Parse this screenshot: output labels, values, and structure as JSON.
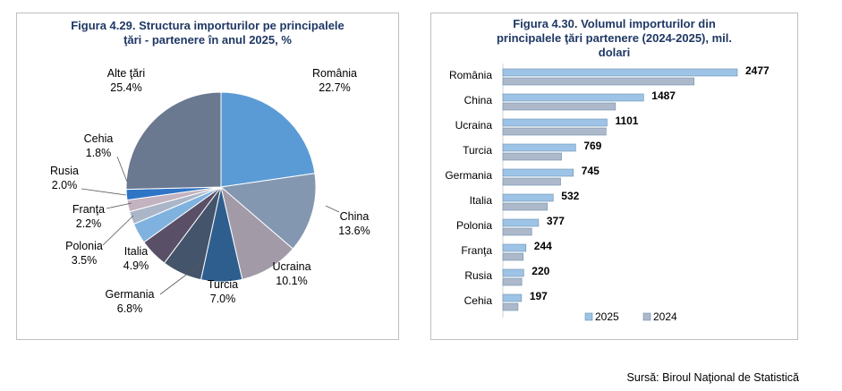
{
  "chart_data": [
    {
      "type": "pie",
      "title_line1": "Figura 4.29. Structura importurilor pe principalele",
      "title_line2": "ţări - partenere în anul 2025, %",
      "slices": [
        {
          "name": "România",
          "value": 22.7,
          "label": "22.7%",
          "color": "#5b9bd5"
        },
        {
          "name": "China",
          "value": 13.6,
          "label": "13.6%",
          "color": "#8497b0"
        },
        {
          "name": "Ucraina",
          "value": 10.1,
          "label": "10.1%",
          "color": "#a39aa8"
        },
        {
          "name": "Turcia",
          "value": 7.0,
          "label": "7.0%",
          "color": "#2e5e8e"
        },
        {
          "name": "Germania",
          "value": 6.8,
          "label": "6.8%",
          "color": "#44546a"
        },
        {
          "name": "Italia",
          "value": 4.9,
          "label": "4.9%",
          "color": "#595068"
        },
        {
          "name": "Polonia",
          "value": 3.5,
          "label": "3.5%",
          "color": "#7fb2df"
        },
        {
          "name": "Franţa",
          "value": 2.2,
          "label": "2.2%",
          "color": "#aab6c8"
        },
        {
          "name": "Rusia",
          "value": 2.0,
          "label": "2.0%",
          "color": "#c3b2bf"
        },
        {
          "name": "Cehia",
          "value": 1.8,
          "label": "1.8%",
          "color": "#2e75c6"
        },
        {
          "name": "Alte ţări",
          "value": 25.4,
          "label": "25.4%",
          "color": "#6a7890"
        }
      ]
    },
    {
      "type": "bar",
      "orientation": "horizontal",
      "title_line1": "Figura 4.30. Volumul importurilor din",
      "title_line2": "principalele ţări partenere (2024-2025), mil.",
      "title_line3": "dolari",
      "categories": [
        "România",
        "China",
        "Ucraina",
        "Turcia",
        "Germania",
        "Italia",
        "Polonia",
        "Franţa",
        "Rusia",
        "Cehia"
      ],
      "series": [
        {
          "name": "2025",
          "color": "#9dc3e6",
          "values": [
            2477,
            1487,
            1101,
            769,
            745,
            532,
            377,
            244,
            220,
            197
          ]
        },
        {
          "name": "2024",
          "color": "#adb9ca",
          "values": [
            2020,
            1190,
            1090,
            620,
            610,
            470,
            305,
            215,
            200,
            160
          ]
        }
      ],
      "xlim": [
        0,
        2600
      ]
    }
  ],
  "footer": {
    "source": "Sursă: Biroul Naţional de Statistică"
  }
}
